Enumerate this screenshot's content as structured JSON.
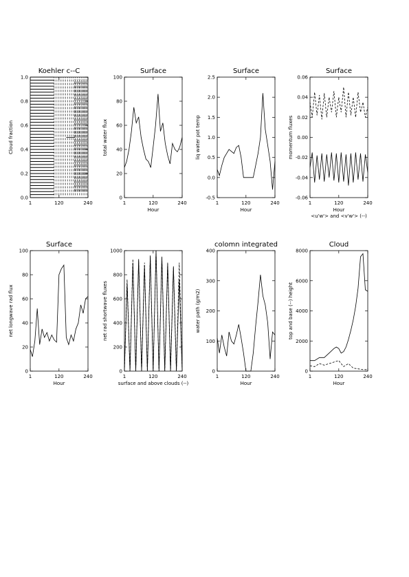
{
  "chart_data": [
    {
      "type": "line",
      "title": "Koehler c--C",
      "xlabel": "",
      "ylabel": "Cloud fraction",
      "xlim": [
        1,
        240
      ],
      "ylim": [
        0.0,
        1.0
      ],
      "xticks": [
        1,
        120,
        240
      ],
      "xtick_labels": [
        "1",
        "120",
        "240"
      ],
      "yticks": [
        0.0,
        0.2,
        0.4,
        0.6,
        0.8,
        1.0
      ],
      "ytick_labels": [
        "0.0",
        "0.2",
        "0.4",
        "0.6",
        "0.8",
        "1.0"
      ],
      "series": [
        {
          "style": "solid",
          "values": []
        },
        {
          "style": "dashed",
          "values": []
        }
      ]
    },
    {
      "type": "line",
      "title": "Surface",
      "xlabel": "Hour",
      "ylabel": "total water flux",
      "xlim": [
        1,
        240
      ],
      "ylim": [
        0,
        100
      ],
      "xticks": [
        1,
        120,
        240
      ],
      "xtick_labels": [
        "1",
        "120",
        "240"
      ],
      "yticks": [
        0,
        20,
        40,
        60,
        80,
        100
      ],
      "ytick_labels": [
        "0",
        "20",
        "40",
        "60",
        "80",
        "100"
      ],
      "series": [
        {
          "style": "solid",
          "x": [
            1,
            10,
            20,
            30,
            40,
            50,
            60,
            70,
            80,
            90,
            100,
            110,
            120,
            130,
            140,
            150,
            160,
            170,
            180,
            190,
            200,
            210,
            220,
            230,
            240
          ],
          "values": [
            25,
            30,
            40,
            55,
            75,
            62,
            67,
            50,
            40,
            32,
            30,
            25,
            42,
            60,
            86,
            55,
            62,
            45,
            35,
            28,
            45,
            40,
            38,
            42,
            50
          ]
        }
      ]
    },
    {
      "type": "line",
      "title": "Surface",
      "xlabel": "Hour",
      "ylabel": "liq water pot temp",
      "xlim": [
        1,
        240
      ],
      "ylim": [
        -0.5,
        2.5
      ],
      "xticks": [
        1,
        120,
        240
      ],
      "xtick_labels": [
        "1",
        "120",
        "240"
      ],
      "yticks": [
        -0.5,
        0.0,
        0.5,
        1.0,
        1.5,
        2.0,
        2.5
      ],
      "ytick_labels": [
        "-0.5",
        "0.0",
        "0.5",
        "1.0",
        "1.5",
        "2.0",
        "2.5"
      ],
      "series": [
        {
          "style": "solid",
          "x": [
            1,
            10,
            20,
            30,
            40,
            50,
            60,
            70,
            80,
            90,
            100,
            110,
            120,
            130,
            140,
            150,
            160,
            170,
            180,
            190,
            200,
            210,
            220,
            230,
            240
          ],
          "values": [
            0.2,
            0.05,
            0.3,
            0.5,
            0.6,
            0.7,
            0.65,
            0.6,
            0.75,
            0.8,
            0.5,
            0.0,
            0.0,
            0.0,
            0.0,
            0.0,
            0.3,
            0.6,
            1.0,
            2.1,
            1.2,
            0.8,
            0.4,
            -0.3,
            0.4
          ]
        }
      ]
    },
    {
      "type": "line",
      "title": "Surface",
      "xlabel": "Hour",
      "ylabel": "momentum fluxes",
      "caption": "<u'w'> and <v'w'> (--)",
      "xlim": [
        1,
        240
      ],
      "ylim": [
        -0.06,
        0.06
      ],
      "xticks": [
        1,
        120,
        240
      ],
      "xtick_labels": [
        "1",
        "120",
        "240"
      ],
      "yticks": [
        -0.06,
        -0.04,
        -0.02,
        0.0,
        0.02,
        0.04,
        0.06
      ],
      "ytick_labels": [
        "-0.06",
        "-0.04",
        "-0.02",
        "0.00",
        "0.02",
        "0.04",
        "0.06"
      ],
      "series": [
        {
          "style": "solid",
          "x": [
            1,
            10,
            20,
            30,
            40,
            50,
            60,
            70,
            80,
            90,
            100,
            110,
            120,
            130,
            140,
            150,
            160,
            170,
            180,
            190,
            200,
            210,
            220,
            230,
            240
          ],
          "values": [
            -0.03,
            -0.015,
            -0.045,
            -0.018,
            -0.042,
            -0.016,
            -0.044,
            -0.017,
            -0.04,
            -0.015,
            -0.043,
            -0.016,
            -0.045,
            -0.015,
            -0.044,
            -0.017,
            -0.048,
            -0.016,
            -0.045,
            -0.015,
            -0.042,
            -0.016,
            -0.044,
            -0.017,
            -0.035
          ]
        },
        {
          "style": "dashed",
          "x": [
            1,
            10,
            20,
            30,
            40,
            50,
            60,
            70,
            80,
            90,
            100,
            110,
            120,
            130,
            140,
            150,
            160,
            170,
            180,
            190,
            200,
            210,
            220,
            230,
            240
          ],
          "values": [
            0.035,
            0.02,
            0.045,
            0.022,
            0.042,
            0.018,
            0.044,
            0.02,
            0.04,
            0.025,
            0.046,
            0.02,
            0.04,
            0.025,
            0.05,
            0.02,
            0.045,
            0.022,
            0.04,
            0.02,
            0.045,
            0.025,
            0.035,
            0.02,
            0.03
          ]
        }
      ]
    },
    {
      "type": "line",
      "title": "Surface",
      "xlabel": "Hour",
      "ylabel": "net longwave rad flux",
      "xlim": [
        1,
        240
      ],
      "ylim": [
        0,
        100
      ],
      "xticks": [
        1,
        120,
        240
      ],
      "xtick_labels": [
        "1",
        "120",
        "240"
      ],
      "yticks": [
        0,
        20,
        40,
        60,
        80,
        100
      ],
      "ytick_labels": [
        "0",
        "20",
        "40",
        "60",
        "80",
        "100"
      ],
      "series": [
        {
          "style": "solid",
          "x": [
            1,
            10,
            20,
            30,
            40,
            50,
            60,
            70,
            80,
            90,
            100,
            110,
            120,
            130,
            140,
            150,
            160,
            170,
            180,
            190,
            200,
            210,
            220,
            230,
            240
          ],
          "values": [
            18,
            12,
            25,
            52,
            22,
            35,
            28,
            32,
            25,
            30,
            26,
            24,
            80,
            85,
            88,
            28,
            22,
            30,
            25,
            35,
            40,
            55,
            48,
            60,
            62
          ]
        }
      ]
    },
    {
      "type": "line",
      "title": "",
      "xlabel": "",
      "ylabel": "net rad shortwave fluxes",
      "caption": "surface and above clouds (--)",
      "xlim": [
        1,
        240
      ],
      "ylim": [
        0,
        1000
      ],
      "xticks": [
        1,
        120,
        240
      ],
      "xtick_labels": [
        "1",
        "120",
        "240"
      ],
      "yticks": [
        0,
        200,
        400,
        600,
        800,
        1000
      ],
      "ytick_labels": [
        "0",
        "200",
        "400",
        "600",
        "800",
        "1000"
      ],
      "series": [
        {
          "style": "solid",
          "x": [
            1,
            12,
            24,
            36,
            48,
            60,
            72,
            84,
            96,
            108,
            120,
            132,
            144,
            156,
            168,
            180,
            192,
            204,
            216,
            228,
            240
          ],
          "values": [
            0,
            730,
            0,
            900,
            0,
            930,
            0,
            880,
            0,
            960,
            0,
            1000,
            0,
            950,
            0,
            900,
            0,
            870,
            0,
            760,
            0
          ]
        },
        {
          "style": "dashed",
          "x": [
            1,
            12,
            24,
            36,
            48,
            60,
            72,
            84,
            96,
            108,
            120,
            132,
            144,
            156,
            168,
            180,
            192,
            204,
            216,
            228,
            240
          ],
          "values": [
            0,
            760,
            0,
            930,
            0,
            920,
            0,
            900,
            0,
            950,
            0,
            1000,
            0,
            940,
            0,
            890,
            0,
            860,
            0,
            900,
            0
          ]
        }
      ]
    },
    {
      "type": "line",
      "title": "colomn integrated",
      "xlabel": "Hour",
      "ylabel": "water path (g/m2)",
      "xlim": [
        1,
        240
      ],
      "ylim": [
        0,
        400
      ],
      "xticks": [
        1,
        120,
        240
      ],
      "xtick_labels": [
        "1",
        "120",
        "240"
      ],
      "yticks": [
        0,
        100,
        200,
        300,
        400
      ],
      "ytick_labels": [
        "0",
        "100",
        "200",
        "300",
        "400"
      ],
      "series": [
        {
          "style": "solid",
          "x": [
            1,
            10,
            20,
            30,
            40,
            50,
            60,
            70,
            80,
            90,
            100,
            110,
            120,
            130,
            140,
            150,
            160,
            170,
            180,
            190,
            200,
            210,
            220,
            230,
            240
          ],
          "values": [
            110,
            60,
            120,
            80,
            50,
            130,
            100,
            90,
            120,
            155,
            110,
            60,
            0,
            0,
            0,
            60,
            150,
            230,
            320,
            250,
            220,
            160,
            40,
            130,
            120
          ]
        }
      ]
    },
    {
      "type": "line",
      "title": "Cloud",
      "xlabel": "Hour",
      "ylabel": "top and base (--) height",
      "xlim": [
        1,
        240
      ],
      "ylim": [
        0,
        8000
      ],
      "xticks": [
        1,
        120,
        240
      ],
      "xtick_labels": [
        "1",
        "120",
        "240"
      ],
      "yticks": [
        0,
        2000,
        4000,
        6000,
        8000
      ],
      "ytick_labels": [
        "0",
        "2000",
        "4000",
        "6000",
        "8000"
      ],
      "series": [
        {
          "style": "solid",
          "x": [
            1,
            20,
            40,
            60,
            80,
            100,
            110,
            120,
            130,
            140,
            150,
            160,
            170,
            180,
            190,
            200,
            210,
            220,
            230,
            240
          ],
          "values": [
            700,
            700,
            900,
            900,
            1200,
            1500,
            1600,
            1500,
            1200,
            1300,
            1600,
            2100,
            2700,
            3400,
            4300,
            5500,
            7600,
            7800,
            5400,
            5300
          ]
        },
        {
          "style": "dashed",
          "x": [
            1,
            20,
            40,
            60,
            80,
            100,
            120,
            140,
            160,
            180,
            200,
            220,
            240
          ],
          "values": [
            350,
            300,
            500,
            400,
            500,
            600,
            700,
            300,
            500,
            200,
            150,
            100,
            100
          ]
        }
      ]
    }
  ]
}
